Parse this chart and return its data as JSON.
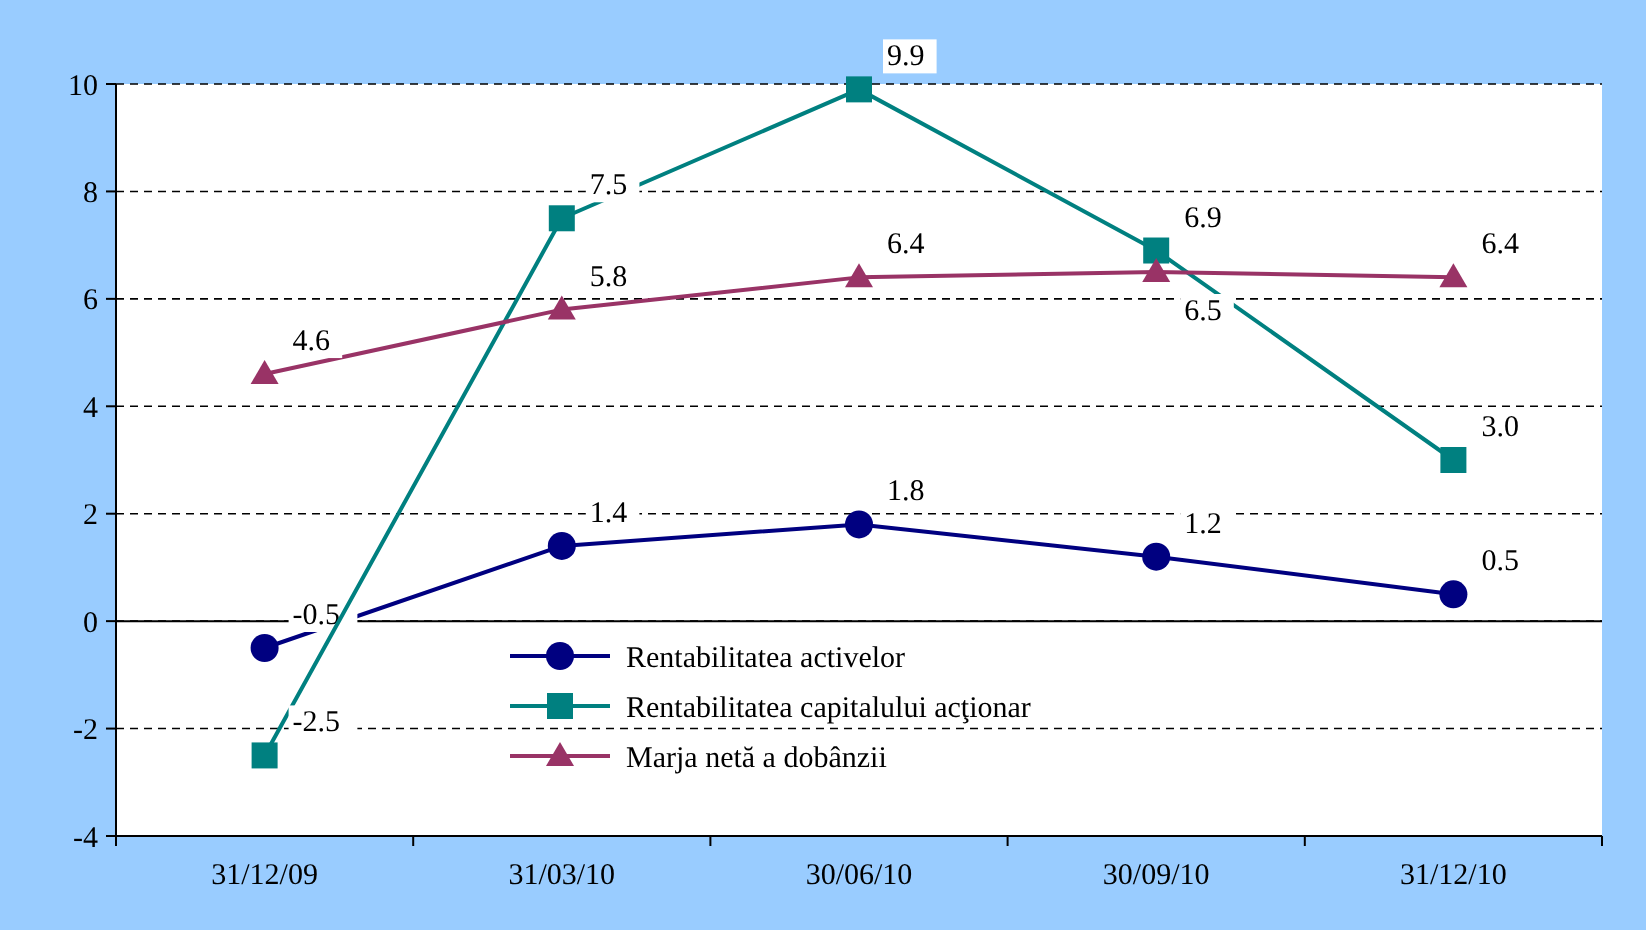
{
  "chart_data": {
    "type": "line",
    "categories": [
      "31/12/09",
      "31/03/10",
      "30/06/10",
      "30/09/10",
      "31/12/10"
    ],
    "series": [
      {
        "name": "Rentabilitatea activelor",
        "color": "#000080",
        "marker": "circle",
        "values": [
          -0.5,
          1.4,
          1.8,
          1.2,
          0.5
        ],
        "value_labels": [
          "-0.5",
          "1.4",
          "1.8",
          "1.2",
          "0.5"
        ]
      },
      {
        "name": "Rentabilitatea capitalului acţionar",
        "color": "#008080",
        "marker": "square",
        "values": [
          -2.5,
          7.5,
          9.9,
          6.9,
          3.0
        ],
        "value_labels": [
          "-2.5",
          "7.5",
          "9.9",
          "6.9",
          "3.0"
        ]
      },
      {
        "name": "Marja netă a dobânzii",
        "color": "#993366",
        "marker": "triangle",
        "values": [
          4.6,
          5.8,
          6.4,
          6.5,
          6.4
        ],
        "value_labels": [
          "4.6",
          "5.8",
          "6.4",
          "6.5",
          "6.4"
        ]
      }
    ],
    "ylim": [
      -4,
      10
    ],
    "yticks": [
      -4,
      -2,
      0,
      2,
      4,
      6,
      8,
      10
    ],
    "grid": "y",
    "legend": "bottom"
  }
}
